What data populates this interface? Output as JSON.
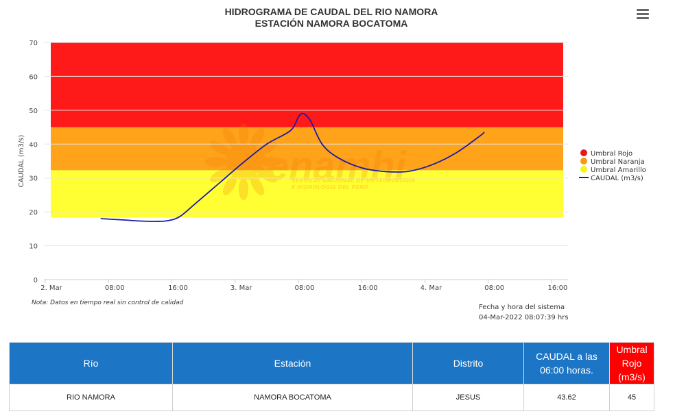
{
  "chart_data": {
    "type": "line",
    "title": "HIDROGRAMA DE CAUDAL DEL RIO NAMORA",
    "subtitle": "ESTACIÓN NAMORA BOCATOMA",
    "ylabel": "CAUDAL (m3/s)",
    "xlabel": "",
    "ylim": [
      0,
      70
    ],
    "y_ticks": [
      0,
      10,
      20,
      30,
      40,
      50,
      60,
      70
    ],
    "x_range_hours": [
      0,
      66
    ],
    "x_ticks": [
      {
        "h": 0,
        "label": "2. Mar"
      },
      {
        "h": 8,
        "label": "08:00"
      },
      {
        "h": 16,
        "label": "16:00"
      },
      {
        "h": 24,
        "label": "3. Mar"
      },
      {
        "h": 32,
        "label": "08:00"
      },
      {
        "h": 40,
        "label": "16:00"
      },
      {
        "h": 48,
        "label": "4. Mar"
      },
      {
        "h": 56,
        "label": "08:00"
      },
      {
        "h": 64,
        "label": "16:00"
      }
    ],
    "bands": [
      {
        "name": "Umbral Amarillo",
        "from": 18.3,
        "to": 32.3,
        "color": "#ffff33"
      },
      {
        "name": "Umbral Naranja",
        "from": 32.3,
        "to": 45,
        "color": "#ffa31a"
      },
      {
        "name": "Umbral Rojo",
        "from": 45,
        "to": 70,
        "color": "#ff1a1a"
      }
    ],
    "band_x_range_hours": [
      1,
      73
    ],
    "series": [
      {
        "name": "CAUDAL (m3/s)",
        "color": "#1a1aa6",
        "x_hours": [
          7,
          10,
          12,
          14,
          15.5,
          17,
          19,
          22,
          25,
          28,
          31,
          32,
          32.6,
          33.5,
          35,
          37,
          40,
          43,
          46,
          49,
          52,
          55,
          55.5
        ],
        "y": [
          18.0,
          17.6,
          17.3,
          17.2,
          17.4,
          18.6,
          22.5,
          28.5,
          34.5,
          40.0,
          44.0,
          48.0,
          49.0,
          47.0,
          40.0,
          36.0,
          33.0,
          31.9,
          32.0,
          34.0,
          37.5,
          42.5,
          43.6
        ]
      }
    ],
    "legend": {
      "position": "right",
      "items": [
        {
          "label": "Umbral Rojo",
          "color": "#e31a1a",
          "kind": "dot"
        },
        {
          "label": "Umbral Naranja",
          "color": "#f59a12",
          "kind": "dot"
        },
        {
          "label": "Umbral Amarillo",
          "color": "#f5f51a",
          "kind": "dot"
        },
        {
          "label": "CAUDAL (m3/s)",
          "color": "#1a1aa6",
          "kind": "line"
        }
      ]
    },
    "watermark": {
      "text": "Senamhi",
      "subtext1": "SERVICIO NACIONAL DE METEOROLOGÍA",
      "subtext2": "E HIDROLOGÍA DEL PERÚ"
    }
  },
  "note": "Nota: Datos en tiempo real sin control de calidad",
  "system_time": {
    "label": "Fecha y hora del sistema",
    "value": "04-Mar-2022 08:07:39 hrs"
  },
  "table": {
    "headers": {
      "rio": "Río",
      "estacion": "Estación",
      "distrito": "Distrito",
      "caudal": "CAUDAL a las 06:00 horas.",
      "umbral": "Umbral Rojo (m3/s)"
    },
    "row": {
      "rio": "RIO NAMORA",
      "estacion": "NAMORA BOCATOMA",
      "distrito": "JESUS",
      "caudal": "43.62",
      "umbral": "45"
    }
  }
}
